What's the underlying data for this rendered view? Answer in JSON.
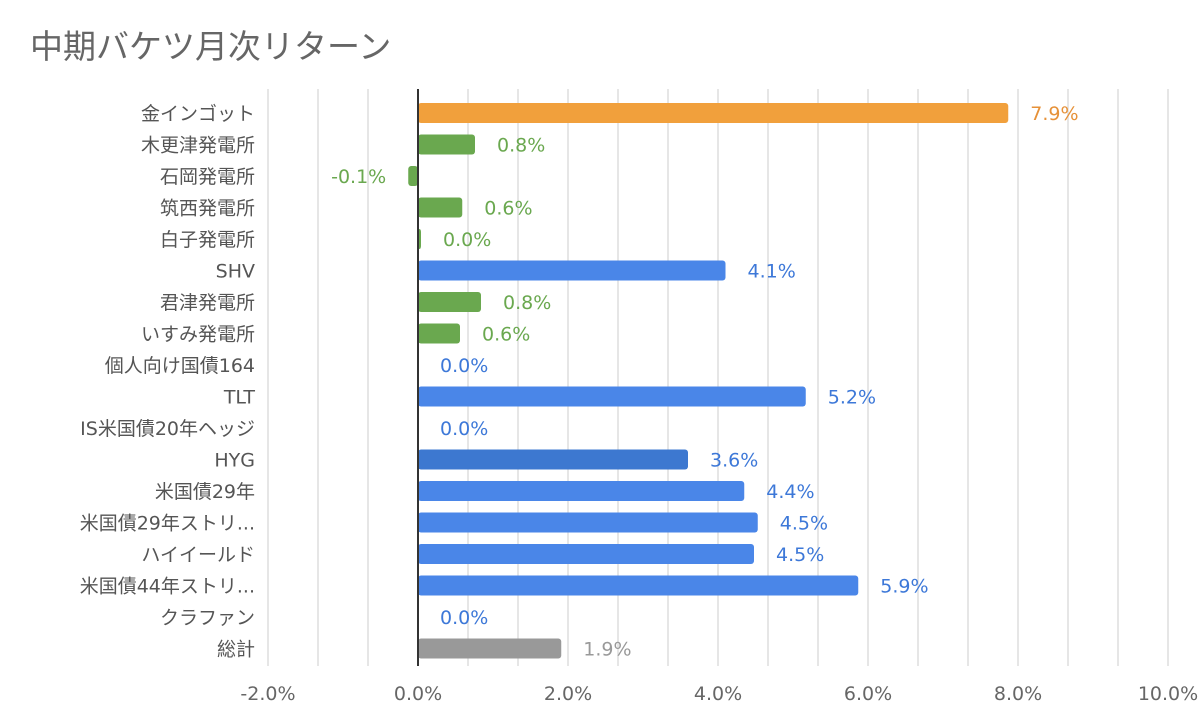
{
  "chart_data": {
    "type": "bar",
    "orientation": "horizontal",
    "title": "中期バケツ月次リターン",
    "xlabel": "",
    "ylabel": "",
    "xlim": [
      -2,
      10
    ],
    "x_ticks": [
      "-2.0%",
      "0.0%",
      "2.0%",
      "4.0%",
      "6.0%",
      "8.0%",
      "10.0%"
    ],
    "grid": true,
    "categories": [
      "金インゴット",
      "木更津発電所",
      "石岡発電所",
      "筑西発電所",
      "白子発電所",
      "SHV",
      "君津発電所",
      "いすみ発電所",
      "個人向け国債164",
      "TLT",
      "IS米国債20年ヘッジ",
      "HYG",
      "米国債29年",
      "米国債29年ストリ...",
      "ハイイールド",
      "米国債44年ストリ...",
      "クラファン",
      "総計"
    ],
    "values": [
      7.87,
      0.76,
      -0.13,
      0.59,
      0.04,
      4.1,
      0.84,
      0.56,
      0,
      5.17,
      0,
      3.6,
      4.35,
      4.53,
      4.48,
      5.87,
      0,
      1.91
    ],
    "data_labels": [
      "7.9%",
      "0.8%",
      "-0.1%",
      "0.6%",
      "0.0%",
      "4.1%",
      "0.8%",
      "0.6%",
      "0.0%",
      "5.2%",
      "0.0%",
      "3.6%",
      "4.4%",
      "4.5%",
      "4.5%",
      "5.9%",
      "0.0%",
      "1.9%"
    ],
    "colors": [
      "#f1a03c",
      "#6aa84f",
      "#6aa84f",
      "#6aa84f",
      "#6aa84f",
      "#4a86e8",
      "#6aa84f",
      "#6aa84f",
      "#4a86e8",
      "#4a86e8",
      "#4a86e8",
      "#3d78d0",
      "#4a86e8",
      "#4a86e8",
      "#4a86e8",
      "#4a86e8",
      "#4a86e8",
      "#999999"
    ],
    "label_colors": [
      "#e69138",
      "#6aa84f",
      "#6aa84f",
      "#6aa84f",
      "#6aa84f",
      "#3d78d8",
      "#6aa84f",
      "#6aa84f",
      "#3d78d8",
      "#3d78d8",
      "#3d78d8",
      "#3d78d8",
      "#3d78d8",
      "#3d78d8",
      "#3d78d8",
      "#3d78d8",
      "#3d78d8",
      "#999999"
    ]
  }
}
